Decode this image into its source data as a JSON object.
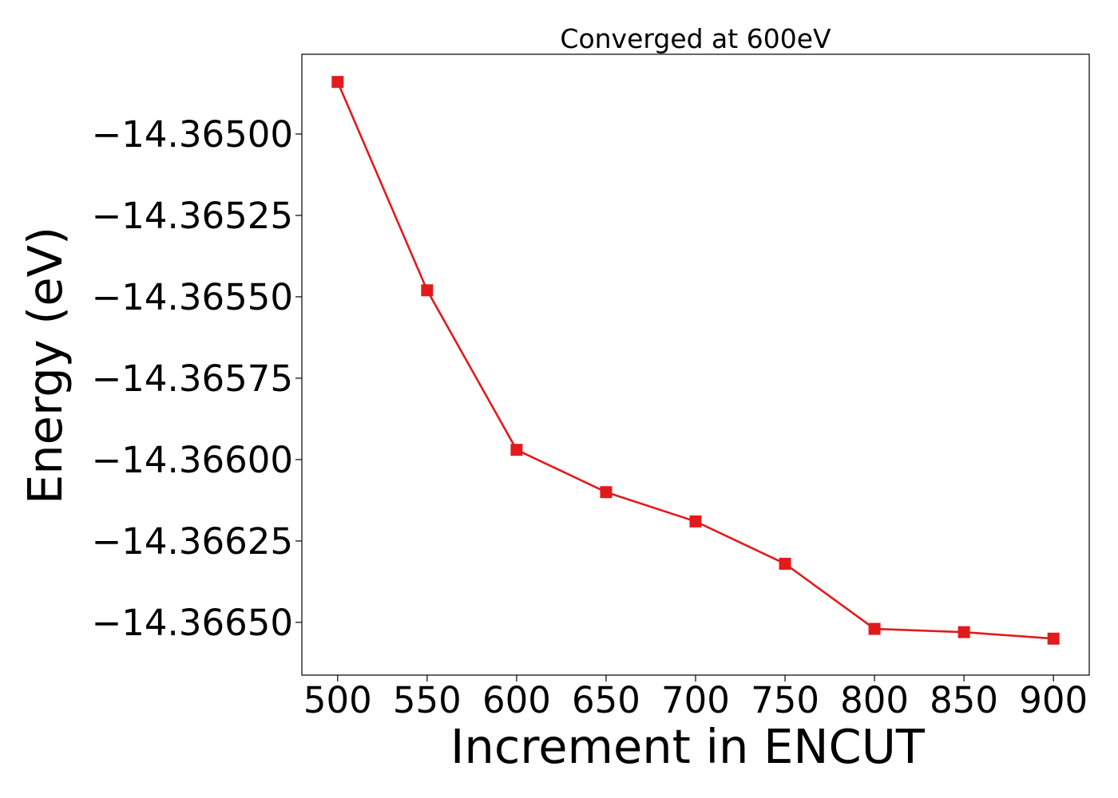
{
  "chart_data": {
    "type": "line",
    "title": "Converged at 600eV",
    "xlabel": "Increment in ENCUT",
    "ylabel": "Energy (eV)",
    "x": [
      500,
      550,
      600,
      650,
      700,
      750,
      800,
      850,
      900
    ],
    "series": [
      {
        "values": [
          -14.36484,
          -14.36548,
          -14.36597,
          -14.3661,
          -14.36619,
          -14.36632,
          -14.36652,
          -14.36653,
          -14.36655
        ],
        "color": "#e31a1c",
        "marker": "square"
      }
    ],
    "xticks": [
      500,
      550,
      600,
      650,
      700,
      750,
      800,
      850,
      900
    ],
    "xtick_labels": [
      "500",
      "550",
      "600",
      "650",
      "700",
      "750",
      "800",
      "850",
      "900"
    ],
    "yticks": [
      -14.365,
      -14.36525,
      -14.3655,
      -14.36575,
      -14.366,
      -14.36625,
      -14.3665
    ],
    "ytick_labels": [
      "−14.36500",
      "−14.36525",
      "−14.36550",
      "−14.36575",
      "−14.36600",
      "−14.36625",
      "−14.36650"
    ],
    "xlim": [
      480,
      920
    ],
    "ylim": [
      -14.366662,
      -14.364755
    ],
    "grid": false,
    "legend": false
  }
}
